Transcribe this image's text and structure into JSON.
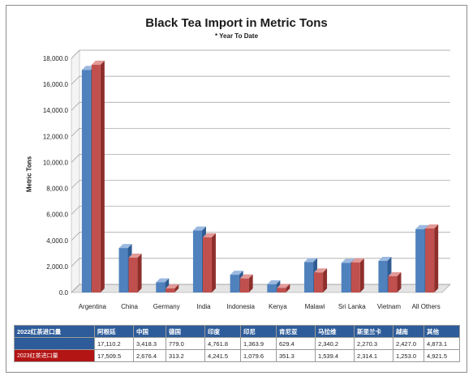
{
  "colors": {
    "series_2022": "#4f81bd",
    "series_2023": "#c0504d",
    "table_header": "#2e5c9a",
    "row_2023": "#b31414"
  },
  "chart_data": {
    "type": "bar",
    "title": "Black Tea Import in Metric Tons",
    "subtitle": "* Year To Date",
    "xlabel": "",
    "ylabel": "Metric Tons",
    "ylim": [
      0,
      18000
    ],
    "yticks": [
      "0.0",
      "2,000.0",
      "4,000.0",
      "6,000.0",
      "8,000.0",
      "10,000.0",
      "12,000.0",
      "14,000.0",
      "16,000.0",
      "18,000.0"
    ],
    "grid": true,
    "categories": [
      "Argentina",
      "China",
      "Germany",
      "India",
      "Indonesia",
      "Kenya",
      "Malawi",
      "Sri Lanka",
      "Vietnam",
      "All Others"
    ],
    "series": [
      {
        "name": "2022红茶进口量",
        "values": [
          17110.2,
          3418.3,
          779.0,
          4761.8,
          1363.9,
          629.4,
          2340.2,
          2270.3,
          2427.0,
          4873.1
        ]
      },
      {
        "name": "2023红茶进口量",
        "values": [
          17509.5,
          2676.4,
          313.2,
          4241.5,
          1079.6,
          351.3,
          1539.4,
          2314.1,
          1253.0,
          4921.5
        ]
      }
    ]
  },
  "table": {
    "header": [
      "阿根廷",
      "中国",
      "德国",
      "印度",
      "印尼",
      "肯尼亚",
      "马拉维",
      "斯里兰卡",
      "越南",
      "其他"
    ],
    "rows": [
      {
        "label": "2022红茶进口量",
        "values": [
          "17,110.2",
          "3,418.3",
          "779.0",
          "4,761.8",
          "1,363.9",
          "629.4",
          "2,340.2",
          "2,270.3",
          "2,427.0",
          "4,873.1"
        ]
      },
      {
        "label": "2023红茶进口量",
        "values": [
          "17,509.5",
          "2,676.4",
          "313.2",
          "4,241.5",
          "1,079.6",
          "351.3",
          "1,539.4",
          "2,314.1",
          "1,253.0",
          "4,921.5"
        ]
      }
    ]
  }
}
